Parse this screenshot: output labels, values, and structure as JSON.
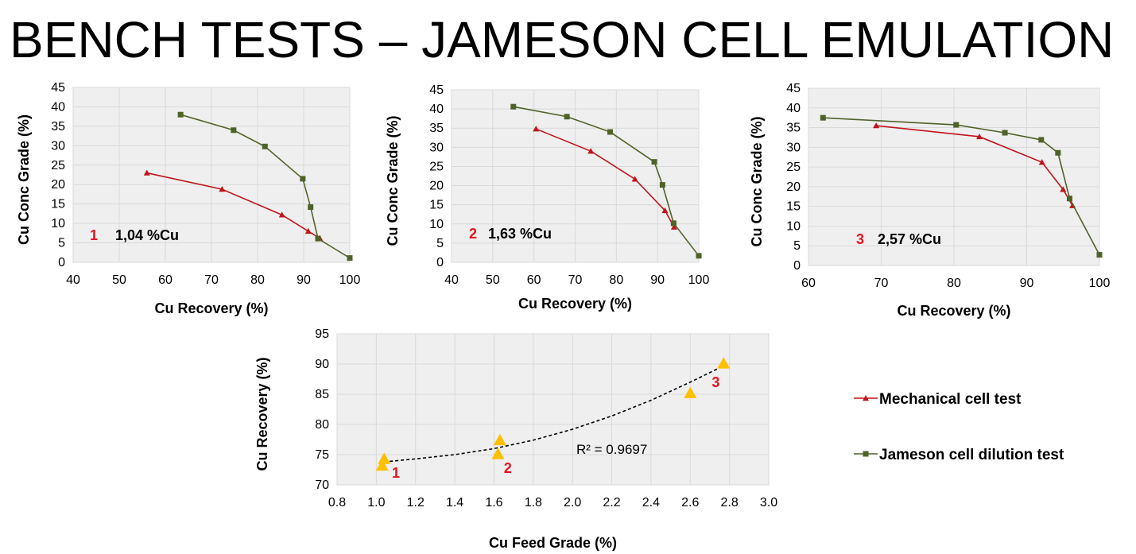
{
  "title": "BENCH TESTS – JAMESON CELL EMULATION",
  "colors": {
    "mechanical": "#c0141c",
    "jameson": "#4f6228",
    "plot_bg": "#efefef",
    "grid": "#d9d9d9",
    "triangle": "#ffc000",
    "label_red": "#e8121b"
  },
  "legend": {
    "mechanical": "Mechanical cell test",
    "jameson": "Jameson cell dilution test"
  },
  "chart_data": [
    {
      "type": "line",
      "id": "c1",
      "number_label": "1",
      "feed_label": "1,04 %Cu",
      "xlabel": "Cu Recovery (%)",
      "ylabel": "Cu Conc Grade (%)",
      "xlim": [
        40,
        100
      ],
      "ylim": [
        0,
        45
      ],
      "xticks": [
        "40",
        "50",
        "60",
        "70",
        "80",
        "90",
        "100"
      ],
      "yticks": [
        "0",
        "5",
        "10",
        "15",
        "20",
        "25",
        "30",
        "35",
        "40",
        "45"
      ],
      "series": [
        {
          "name": "Mechanical cell test",
          "marker": "triangle",
          "x": [
            56,
            72.3,
            85.3,
            91,
            93.5
          ],
          "y": [
            23,
            18.8,
            12.2,
            8,
            6.2
          ]
        },
        {
          "name": "Jameson cell dilution test",
          "marker": "square",
          "x": [
            63.3,
            74.8,
            81.6,
            89.8,
            91.5,
            93.1,
            100
          ],
          "y": [
            38,
            34,
            29.8,
            21.5,
            14.2,
            6.1,
            1.1
          ]
        }
      ]
    },
    {
      "type": "line",
      "id": "c2",
      "number_label": "2",
      "feed_label": "1,63 %Cu",
      "xlabel": "Cu Recovery (%)",
      "ylabel": "Cu Conc Grade (%)",
      "xlim": [
        40,
        100
      ],
      "ylim": [
        0,
        45
      ],
      "xticks": [
        "40",
        "50",
        "60",
        "70",
        "80",
        "90",
        "100"
      ],
      "yticks": [
        "0",
        "5",
        "10",
        "15",
        "20",
        "25",
        "30",
        "35",
        "40",
        "45"
      ],
      "series": [
        {
          "name": "Mechanical cell test",
          "marker": "triangle",
          "x": [
            60.5,
            73.8,
            84.5,
            91.8,
            94
          ],
          "y": [
            34.8,
            29,
            21.7,
            13.5,
            9.2
          ]
        },
        {
          "name": "Jameson cell dilution test",
          "marker": "square",
          "x": [
            55,
            68,
            78.5,
            89.2,
            91.2,
            93.9,
            100
          ],
          "y": [
            40.6,
            38,
            34,
            26.2,
            20.2,
            10.2,
            1.7
          ]
        }
      ]
    },
    {
      "type": "line",
      "id": "c3",
      "number_label": "3",
      "feed_label": "2,57 %Cu",
      "xlabel": "Cu Recovery (%)",
      "ylabel": "Cu Conc Grade (%)",
      "xlim": [
        60,
        100
      ],
      "ylim": [
        0,
        45
      ],
      "xticks": [
        "60",
        "70",
        "80",
        "90",
        "100"
      ],
      "yticks": [
        "0",
        "5",
        "10",
        "15",
        "20",
        "25",
        "30",
        "35",
        "40",
        "45"
      ],
      "series": [
        {
          "name": "Mechanical cell test",
          "marker": "triangle",
          "x": [
            69.3,
            83.5,
            92.1,
            95,
            96.3
          ],
          "y": [
            35.5,
            32.7,
            26.2,
            19.3,
            15.2
          ]
        },
        {
          "name": "Jameson cell dilution test",
          "marker": "square",
          "x": [
            62,
            80.3,
            87,
            92,
            94.3,
            95.9,
            100
          ],
          "y": [
            37.5,
            35.7,
            33.7,
            31.9,
            28.6,
            17,
            2.7
          ]
        }
      ]
    },
    {
      "type": "scatter",
      "id": "c4",
      "xlabel": "Cu Feed Grade (%)",
      "ylabel": "Cu Recovery (%)",
      "xlim": [
        0.8,
        3.0
      ],
      "ylim": [
        70,
        95
      ],
      "xticks": [
        "0.8",
        "1.0",
        "1.2",
        "1.4",
        "1.6",
        "1.8",
        "2.0",
        "2.2",
        "2.4",
        "2.6",
        "2.8",
        "3.0"
      ],
      "yticks": [
        "70",
        "75",
        "80",
        "85",
        "90",
        "95"
      ],
      "points": [
        {
          "x": 1.03,
          "y": 73.2
        },
        {
          "x": 1.04,
          "y": 74.3
        },
        {
          "x": 1.62,
          "y": 75.1
        },
        {
          "x": 1.63,
          "y": 77.4
        },
        {
          "x": 2.6,
          "y": 85.2
        },
        {
          "x": 2.77,
          "y": 90.1
        }
      ],
      "trendline": {
        "style": "dashed",
        "x": [
          1.04,
          1.2,
          1.4,
          1.6,
          1.8,
          2.0,
          2.2,
          2.4,
          2.6,
          2.77
        ],
        "y": [
          73.8,
          74.3,
          75.0,
          76.0,
          77.4,
          79.2,
          81.4,
          84.0,
          87.0,
          89.7
        ]
      },
      "r2_label": "R² = 0.9697",
      "group_labels": [
        {
          "label": "1",
          "x": 1.1,
          "y": 71.2
        },
        {
          "label": "2",
          "x": 1.67,
          "y": 72.0
        },
        {
          "label": "3",
          "x": 2.73,
          "y": 86.2
        }
      ]
    }
  ]
}
